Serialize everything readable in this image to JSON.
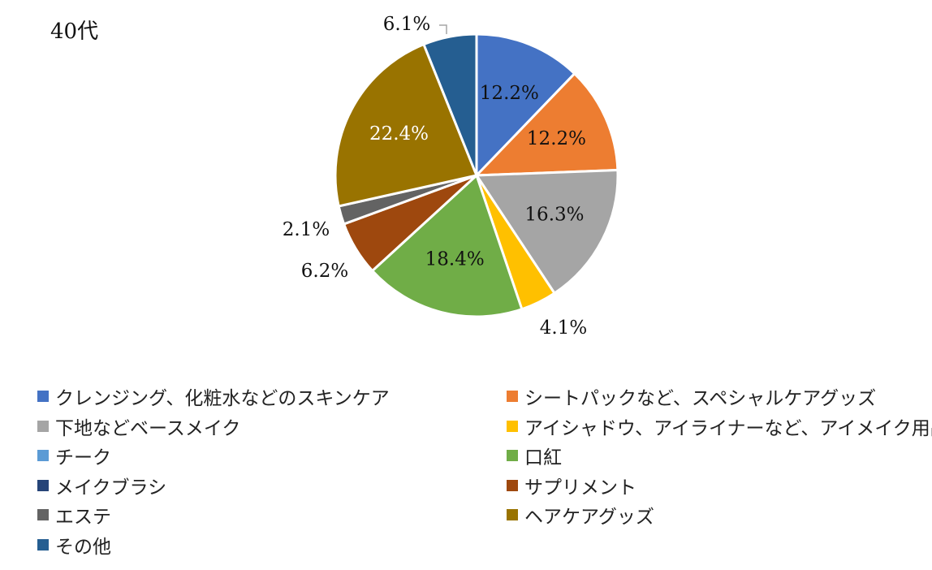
{
  "chart_data": {
    "type": "pie",
    "title": "40代",
    "start_angle_deg": 0,
    "direction": "clockwise",
    "slices": [
      {
        "label": "クレンジング、化粧水などのスキンケア",
        "value": 12.2,
        "display": "12.2%",
        "color": "#4472C4",
        "label_color": "#111111",
        "label_position": "inside"
      },
      {
        "label": "シートパックなど、スペシャルケアグッズ",
        "value": 12.2,
        "display": "12.2%",
        "color": "#ED7D31",
        "label_color": "#111111",
        "label_position": "inside"
      },
      {
        "label": "下地などベースメイク",
        "value": 16.3,
        "display": "16.3%",
        "color": "#A5A5A5",
        "label_color": "#111111",
        "label_position": "inside"
      },
      {
        "label": "アイシャドウ、アイライナーなど、アイメイク用品",
        "value": 4.1,
        "display": "4.1%",
        "color": "#FFC000",
        "label_color": "#111111",
        "label_position": "outside"
      },
      {
        "label": "チーク",
        "value": 0,
        "display": "",
        "color": "#5B9BD5",
        "label_color": "#111111",
        "label_position": "none"
      },
      {
        "label": "口紅",
        "value": 18.4,
        "display": "18.4%",
        "color": "#70AD47",
        "label_color": "#111111",
        "label_position": "inside"
      },
      {
        "label": "メイクブラシ",
        "value": 0,
        "display": "",
        "color": "#264478",
        "label_color": "#111111",
        "label_position": "none"
      },
      {
        "label": "サプリメント",
        "value": 6.2,
        "display": "6.2%",
        "color": "#9E480E",
        "label_color": "#111111",
        "label_position": "outside"
      },
      {
        "label": "エステ",
        "value": 2.1,
        "display": "2.1%",
        "color": "#636363",
        "label_color": "#111111",
        "label_position": "outside"
      },
      {
        "label": "ヘアケアグッズ",
        "value": 22.4,
        "display": "22.4%",
        "color": "#997300",
        "label_color": "#ffffff",
        "label_position": "inside"
      },
      {
        "label": "その他",
        "value": 6.1,
        "display": "6.1%",
        "color": "#255E91",
        "label_color": "#111111",
        "label_position": "outside"
      }
    ],
    "legend_position": "bottom",
    "legend_columns": 2
  }
}
